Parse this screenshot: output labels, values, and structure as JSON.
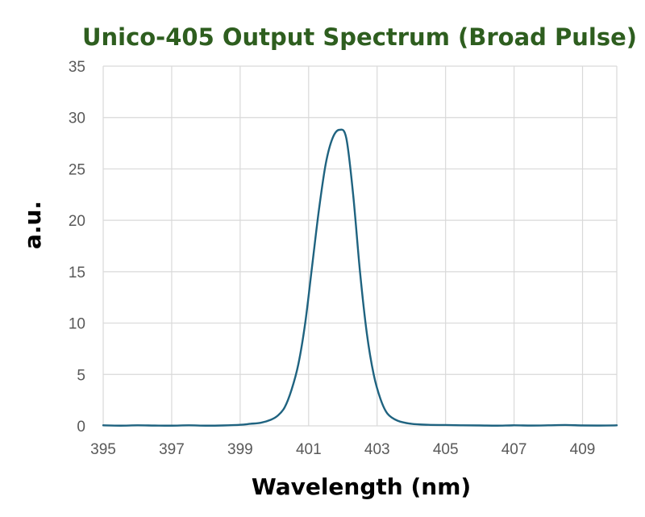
{
  "chart_data": {
    "type": "line",
    "title": "Unico-405 Output Spectrum (Broad Pulse)",
    "xlabel": "Wavelength (nm)",
    "ylabel": "a.u.",
    "xlim": [
      395,
      410
    ],
    "ylim": [
      0,
      35
    ],
    "xticks": [
      395,
      397,
      399,
      401,
      403,
      405,
      407,
      409
    ],
    "yticks": [
      0,
      5,
      10,
      15,
      20,
      25,
      30,
      35
    ],
    "grid": true,
    "legend": "none",
    "colors": {
      "title": "#2e5e1f",
      "line": "#1f6380",
      "grid": "#d9d9d9",
      "tick_text": "#595959"
    },
    "series": [
      {
        "x": [
          395,
          395.5,
          396,
          396.5,
          397,
          397.5,
          398,
          398.5,
          399,
          399.3,
          399.6,
          399.9,
          400.1,
          400.3,
          400.5,
          400.7,
          400.9,
          401.1,
          401.3,
          401.5,
          401.7,
          401.9,
          402.1,
          402.3,
          402.5,
          402.7,
          402.9,
          403.1,
          403.3,
          403.6,
          404,
          404.5,
          405,
          405.5,
          406,
          406.5,
          407,
          407.5,
          408,
          408.5,
          409,
          409.5,
          410
        ],
        "values": [
          0.05,
          0.02,
          0.05,
          0.03,
          0.02,
          0.05,
          0.02,
          0.04,
          0.1,
          0.2,
          0.3,
          0.6,
          1.0,
          1.8,
          3.5,
          6.0,
          10.0,
          15.5,
          21.0,
          25.5,
          28.0,
          28.8,
          28.0,
          22.5,
          15.0,
          9.0,
          5.0,
          2.6,
          1.2,
          0.5,
          0.2,
          0.1,
          0.08,
          0.05,
          0.04,
          0.02,
          0.05,
          0.03,
          0.05,
          0.08,
          0.04,
          0.03,
          0.05
        ]
      }
    ]
  }
}
